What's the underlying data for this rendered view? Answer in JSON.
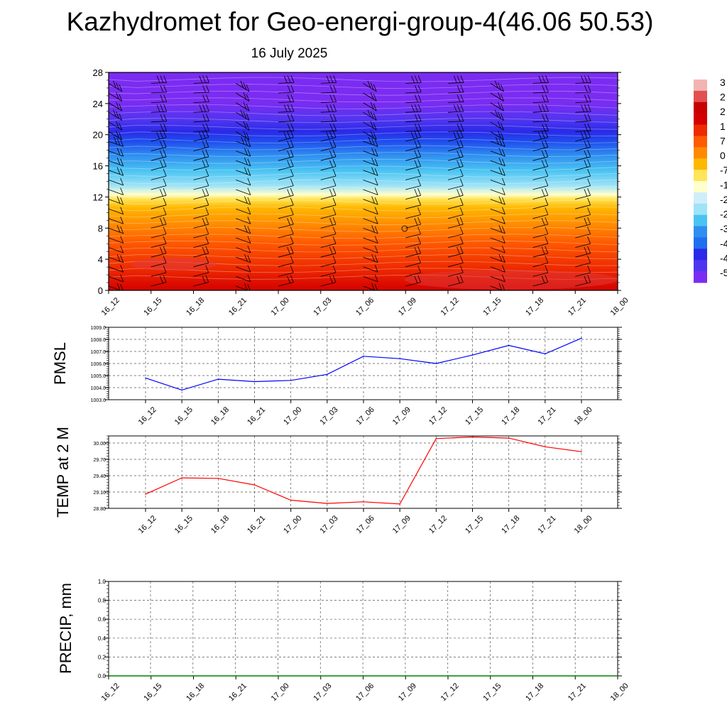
{
  "title": "Kazhydromet for Geo-energi-group-4(46.06 50.53)",
  "subtitle": "16 July 2025",
  "chart_data": [
    {
      "type": "heatmap",
      "name": "height-time temperature cross section with wind barbs",
      "x_ticks": [
        "16_12",
        "16_15",
        "16_18",
        "16_21",
        "17_00",
        "17_03",
        "17_06",
        "17_09",
        "17_12",
        "17_15",
        "17_18",
        "17_21",
        "18_00"
      ],
      "y_ticks": [
        "0",
        "4",
        "8",
        "12",
        "16",
        "20",
        "24",
        "28"
      ],
      "ylim": [
        0,
        28
      ],
      "colorbar_labels": [
        "3",
        "2",
        "2",
        "1",
        "7",
        "0",
        "-7",
        "-1",
        "-2",
        "-2",
        "-3",
        "-4",
        "-4",
        "-5"
      ],
      "color_stops": [
        "#7b2cf2",
        "#4f35f0",
        "#2a2ae8",
        "#1f50ee",
        "#2f8ef0",
        "#49c3f2",
        "#9fe3f7",
        "#ffffcc",
        "#ffe55a",
        "#ffb800",
        "#ff8a00",
        "#ff5a00",
        "#ee2a00",
        "#d40000"
      ]
    },
    {
      "type": "line",
      "ylabel": "PMSL",
      "x": [
        "16_12",
        "16_15",
        "16_18",
        "16_21",
        "17_00",
        "17_03",
        "17_06",
        "17_09",
        "17_12",
        "17_15",
        "17_18",
        "17_21",
        "18_00"
      ],
      "values": [
        1004.8,
        1003.8,
        1004.7,
        1004.5,
        1004.6,
        1005.1,
        1006.6,
        1006.4,
        1006.0,
        1006.7,
        1007.5,
        1006.8,
        1008.1
      ],
      "ylim": [
        1003.0,
        1009.0
      ],
      "y_ticks": [
        "1003.0",
        "1004.0",
        "1005.0",
        "1006.0",
        "1007.0",
        "1008.0",
        "1009.0"
      ],
      "color": "#0000ff",
      "grid": true
    },
    {
      "type": "line",
      "ylabel": "TEMP at 2 M",
      "x": [
        "16_12",
        "16_15",
        "16_18",
        "16_21",
        "17_00",
        "17_03",
        "17_06",
        "17_09",
        "17_12",
        "17_15",
        "17_18",
        "17_21",
        "18_00"
      ],
      "values": [
        29.06,
        29.36,
        29.35,
        29.23,
        28.95,
        28.89,
        28.92,
        28.88,
        30.08,
        30.11,
        30.09,
        29.93,
        29.84
      ],
      "ylim": [
        28.8,
        30.13
      ],
      "y_ticks": [
        "28.80",
        "29.10",
        "29.40",
        "29.70",
        "30.00"
      ],
      "color": "#ff0000",
      "grid": true
    },
    {
      "type": "line",
      "ylabel": "PRECIP, mm",
      "x": [
        "16_12",
        "16_15",
        "16_18",
        "16_21",
        "17_00",
        "17_03",
        "17_06",
        "17_09",
        "17_12",
        "17_15",
        "17_18",
        "17_21",
        "18_00"
      ],
      "values": [
        0,
        0,
        0,
        0,
        0,
        0,
        0,
        0,
        0,
        0,
        0,
        0,
        0
      ],
      "ylim": [
        0.0,
        1.0
      ],
      "y_ticks": [
        "0.0",
        "0.2",
        "0.4",
        "0.6",
        "0.8",
        "1.0"
      ],
      "color": "#008000",
      "grid": true
    }
  ]
}
